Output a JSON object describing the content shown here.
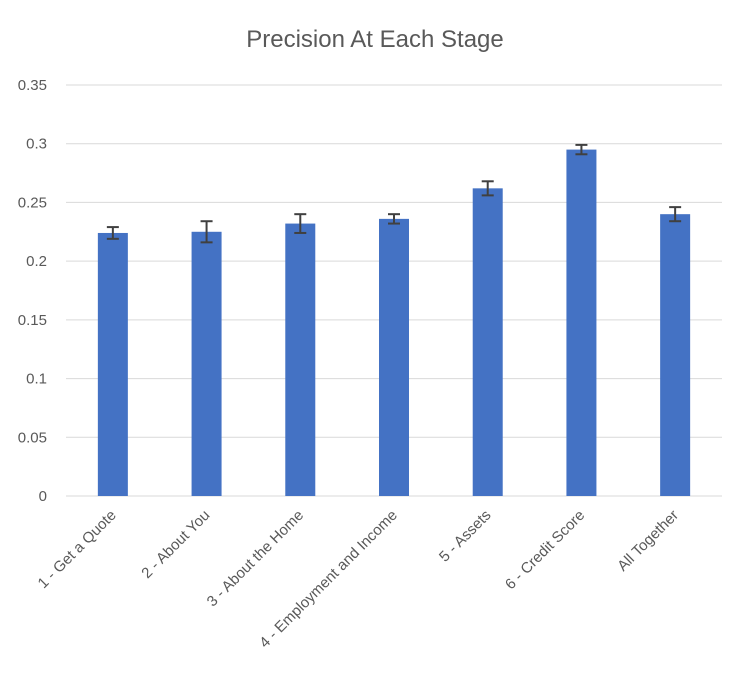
{
  "chart_data": {
    "type": "bar",
    "title": "Precision At Each Stage",
    "xlabel": "",
    "ylabel": "",
    "categories": [
      "1 - Get a Quote",
      "2 - About You",
      "3 - About the Home",
      "4 - Employment and Income",
      "5 - Assets",
      "6 - Credit Score",
      "All Together"
    ],
    "values": [
      0.224,
      0.225,
      0.232,
      0.236,
      0.262,
      0.295,
      0.24
    ],
    "error_bars": [
      0.005,
      0.009,
      0.008,
      0.004,
      0.006,
      0.004,
      0.006
    ],
    "ylim": [
      0,
      0.35
    ],
    "yticks": [
      "0",
      "0.05",
      "0.1",
      "0.15",
      "0.2",
      "0.25",
      "0.3",
      "0.35"
    ],
    "ytick_values": [
      0,
      0.05,
      0.1,
      0.15,
      0.2,
      0.25,
      0.3,
      0.35
    ],
    "grid": true,
    "legend": "none",
    "colors": {
      "bar": "#4472c4",
      "error_bar": "#404040",
      "grid": "#d9d9d9",
      "text": "#595959"
    }
  }
}
